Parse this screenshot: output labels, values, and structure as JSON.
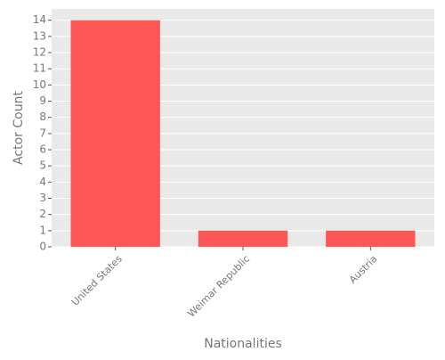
{
  "chart_data": {
    "type": "bar",
    "title": "",
    "xlabel": "Nationalities",
    "ylabel": "Actor Count",
    "categories": [
      "United States",
      "Weimar Republic",
      "Austria"
    ],
    "values": [
      14,
      1,
      1
    ],
    "ylim": [
      0,
      14.7
    ],
    "yticks": [
      0,
      1,
      2,
      3,
      4,
      5,
      6,
      7,
      8,
      9,
      10,
      11,
      12,
      13,
      14
    ],
    "grid": true,
    "bar_color": "#ff5555",
    "background_color": "#e9e9e9",
    "grid_color": "#ffffff",
    "label_color": "#777777",
    "tick_label_rotation": "45deg"
  }
}
